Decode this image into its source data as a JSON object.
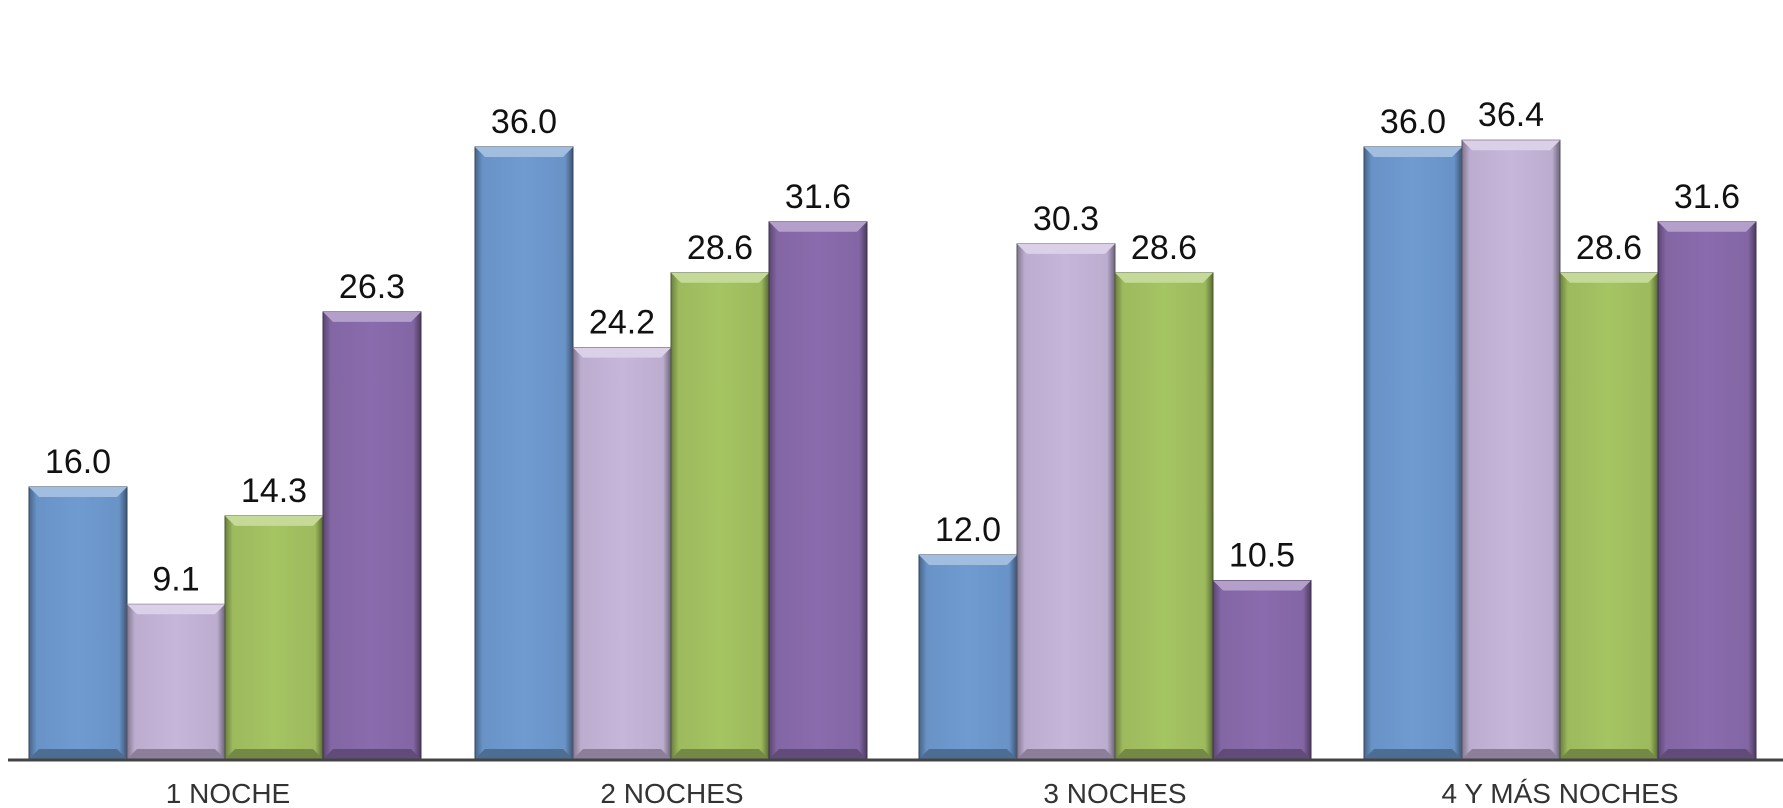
{
  "chart_data": {
    "type": "bar",
    "title": "",
    "xlabel": "",
    "ylabel": "",
    "ylim": [
      0,
      40
    ],
    "grid": false,
    "legend": "none",
    "categories": [
      "1 NOCHE",
      "2 NOCHES",
      "3 NOCHES",
      "4 Y MÁS NOCHES"
    ],
    "series": [
      {
        "color": "#6f9bd1",
        "values": [
          16.0,
          36.0,
          12.0,
          36.0
        ]
      },
      {
        "color": "#c6b6da",
        "values": [
          9.1,
          24.2,
          30.3,
          36.4
        ]
      },
      {
        "color": "#a5c462",
        "values": [
          14.3,
          28.6,
          28.6,
          28.6
        ]
      },
      {
        "color": "#8a6bad",
        "values": [
          26.3,
          31.6,
          10.5,
          31.6
        ]
      }
    ],
    "data_labels": [
      [
        "16.0",
        "36.0",
        "12.0",
        "36.0"
      ],
      [
        "9.1",
        "24.2",
        "30.3",
        "36.4"
      ],
      [
        "14.3",
        "28.6",
        "28.6",
        "28.6"
      ],
      [
        "26.3",
        "31.6",
        "10.5",
        "31.6"
      ]
    ]
  }
}
